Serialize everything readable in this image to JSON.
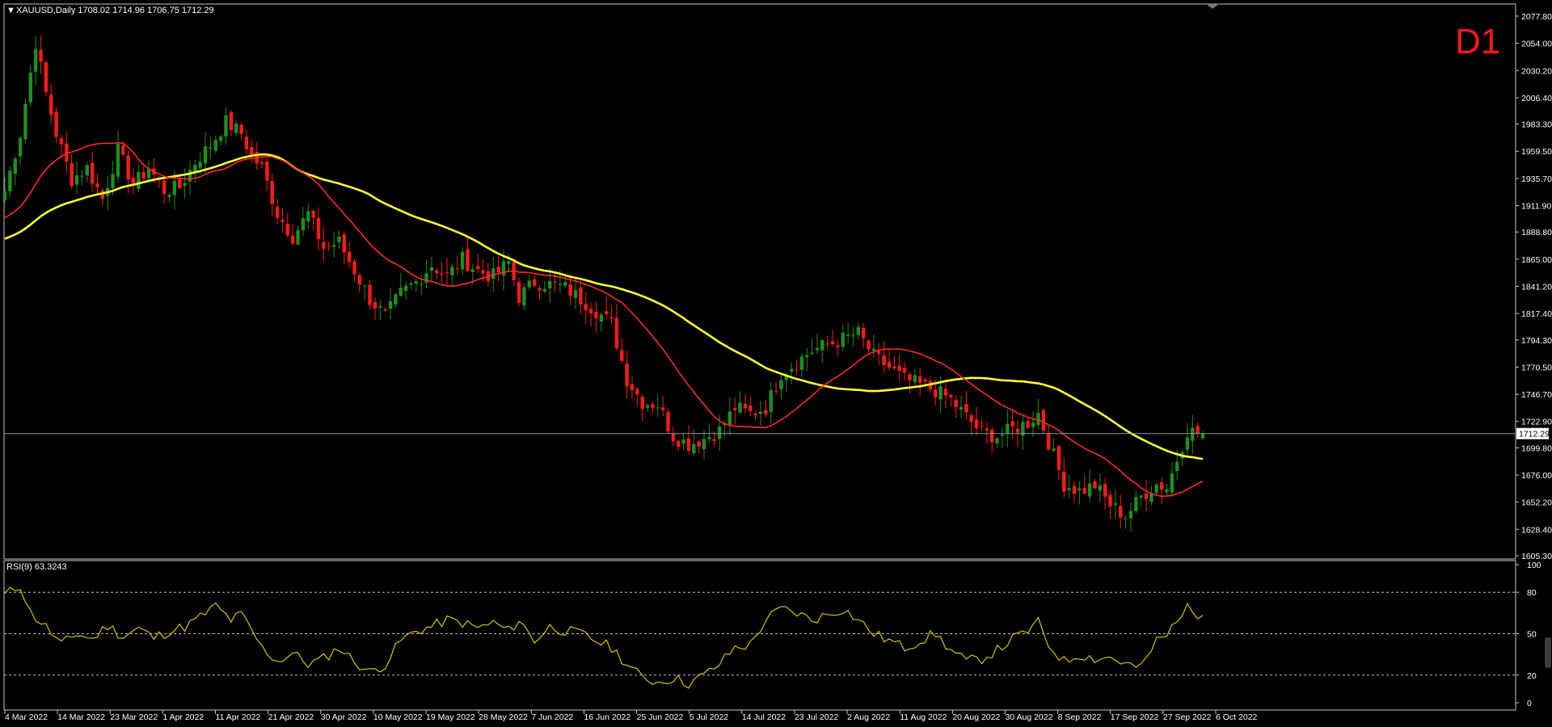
{
  "window": {
    "header": "XAUUSD,Daily  1708.02 1714.96 1706.75 1712.29",
    "timeframe_badge": "D1",
    "current_price_label": "1712.29",
    "colors": {
      "background": "#000000",
      "bull_candle": "#1f8f1f",
      "bear_candle": "#ff1a1a",
      "ma_fast": "#ff2a2a",
      "ma_slow": "#ffff33",
      "rsi_line": "#d4c400",
      "grid_border": "#c8c8c8",
      "text": "#ffffff"
    }
  },
  "chart_data": [
    {
      "type": "candlestick",
      "symbol": "XAUUSD",
      "timeframe": "Daily",
      "ohlc_last": {
        "open": 1708.02,
        "high": 1714.96,
        "low": 1706.75,
        "close": 1712.29
      },
      "ylim": [
        1605.3,
        2077.8
      ],
      "y_ticks": [
        "2077.80",
        "2054.00",
        "2030.20",
        "2006.40",
        "1983.30",
        "1959.50",
        "1935.70",
        "1911.90",
        "1888.80",
        "1865.00",
        "1841.20",
        "1817.40",
        "1794.30",
        "1770.50",
        "1746.70",
        "1722.90",
        "1699.80",
        "1676.00",
        "1652.20",
        "1628.40",
        "1605.30"
      ],
      "x_ticks": [
        "4 Mar 2022",
        "14 Mar 2022",
        "23 Mar 2022",
        "1 Apr 2022",
        "11 Apr 2022",
        "21 Apr 2022",
        "30 Apr 2022",
        "10 May 2022",
        "19 May 2022",
        "28 May 2022",
        "7 Jun 2022",
        "16 Jun 2022",
        "25 Jun 2022",
        "5 Jul 2022",
        "14 Jul 2022",
        "23 Jul 2022",
        "2 Aug 2022",
        "11 Aug 2022",
        "20 Aug 2022",
        "30 Aug 2022",
        "8 Sep 2022",
        "17 Sep 2022",
        "27 Sep 2022",
        "6 Oct 2022"
      ],
      "price_anchors": [
        [
          0,
          1925
        ],
        [
          3,
          1975
        ],
        [
          6,
          2055
        ],
        [
          8,
          2010
        ],
        [
          10,
          1975
        ],
        [
          13,
          1935
        ],
        [
          16,
          1945
        ],
        [
          19,
          1918
        ],
        [
          22,
          1960
        ],
        [
          25,
          1930
        ],
        [
          28,
          1945
        ],
        [
          31,
          1925
        ],
        [
          34,
          1928
        ],
        [
          37,
          1950
        ],
        [
          40,
          1965
        ],
        [
          43,
          1985
        ],
        [
          46,
          1975
        ],
        [
          48,
          1955
        ],
        [
          50,
          1945
        ],
        [
          53,
          1905
        ],
        [
          56,
          1885
        ],
        [
          59,
          1905
        ],
        [
          62,
          1875
        ],
        [
          65,
          1880
        ],
        [
          68,
          1855
        ],
        [
          71,
          1830
        ],
        [
          74,
          1815
        ],
        [
          77,
          1835
        ],
        [
          80,
          1845
        ],
        [
          83,
          1860
        ],
        [
          86,
          1850
        ],
        [
          89,
          1865
        ],
        [
          92,
          1855
        ],
        [
          95,
          1850
        ],
        [
          98,
          1862
        ],
        [
          100,
          1832
        ],
        [
          103,
          1845
        ],
        [
          106,
          1843
        ],
        [
          109,
          1840
        ],
        [
          112,
          1830
        ],
        [
          115,
          1820
        ],
        [
          118,
          1808
        ],
        [
          121,
          1760
        ],
        [
          124,
          1740
        ],
        [
          127,
          1738
        ],
        [
          130,
          1710
        ],
        [
          133,
          1703
        ],
        [
          136,
          1708
        ],
        [
          139,
          1715
        ],
        [
          142,
          1735
        ],
        [
          145,
          1730
        ],
        [
          148,
          1735
        ],
        [
          151,
          1765
        ],
        [
          154,
          1775
        ],
        [
          157,
          1785
        ],
        [
          160,
          1790
        ],
        [
          163,
          1795
        ],
        [
          166,
          1800
        ],
        [
          169,
          1780
        ],
        [
          172,
          1770
        ],
        [
          175,
          1760
        ],
        [
          178,
          1755
        ],
        [
          181,
          1750
        ],
        [
          184,
          1742
        ],
        [
          187,
          1727
        ],
        [
          190,
          1713
        ],
        [
          193,
          1710
        ],
        [
          196,
          1716
        ],
        [
          199,
          1722
        ],
        [
          201,
          1730
        ],
        [
          203,
          1705
        ],
        [
          206,
          1668
        ],
        [
          209,
          1662
        ],
        [
          212,
          1667
        ],
        [
          215,
          1650
        ],
        [
          218,
          1640
        ],
        [
          221,
          1657
        ],
        [
          224,
          1668
        ],
        [
          226,
          1665
        ],
        [
          228,
          1690
        ],
        [
          230,
          1715
        ],
        [
          233,
          1712
        ]
      ],
      "series": [
        {
          "name": "MA fast",
          "source": "moving average of close"
        },
        {
          "name": "MA slow",
          "source": "moving average of close"
        }
      ],
      "horizontal_line": 1712.29,
      "grid": false
    },
    {
      "type": "line",
      "title": "RSI(9) 63.3243",
      "ylim": [
        0,
        100
      ],
      "y_ticks": [
        "100",
        "80",
        "50",
        "20",
        "0"
      ],
      "levels": [
        80,
        50,
        20
      ],
      "rsi_anchors": [
        [
          0,
          78
        ],
        [
          3,
          85
        ],
        [
          5,
          65
        ],
        [
          8,
          55
        ],
        [
          11,
          42
        ],
        [
          14,
          50
        ],
        [
          17,
          46
        ],
        [
          20,
          56
        ],
        [
          23,
          48
        ],
        [
          26,
          54
        ],
        [
          29,
          47
        ],
        [
          32,
          52
        ],
        [
          35,
          55
        ],
        [
          38,
          62
        ],
        [
          41,
          70
        ],
        [
          44,
          60
        ],
        [
          46,
          64
        ],
        [
          48,
          52
        ],
        [
          50,
          40
        ],
        [
          53,
          30
        ],
        [
          56,
          36
        ],
        [
          59,
          28
        ],
        [
          62,
          32
        ],
        [
          65,
          40
        ],
        [
          68,
          30
        ],
        [
          71,
          22
        ],
        [
          74,
          28
        ],
        [
          77,
          45
        ],
        [
          80,
          52
        ],
        [
          83,
          55
        ],
        [
          86,
          60
        ],
        [
          89,
          58
        ],
        [
          92,
          54
        ],
        [
          95,
          58
        ],
        [
          98,
          52
        ],
        [
          100,
          60
        ],
        [
          103,
          45
        ],
        [
          106,
          55
        ],
        [
          109,
          52
        ],
        [
          112,
          50
        ],
        [
          115,
          45
        ],
        [
          118,
          40
        ],
        [
          121,
          28
        ],
        [
          124,
          18
        ],
        [
          127,
          15
        ],
        [
          130,
          18
        ],
        [
          133,
          14
        ],
        [
          136,
          20
        ],
        [
          139,
          28
        ],
        [
          142,
          40
        ],
        [
          145,
          42
        ],
        [
          148,
          60
        ],
        [
          151,
          68
        ],
        [
          154,
          65
        ],
        [
          157,
          60
        ],
        [
          160,
          64
        ],
        [
          163,
          68
        ],
        [
          166,
          60
        ],
        [
          169,
          50
        ],
        [
          172,
          45
        ],
        [
          175,
          40
        ],
        [
          178,
          45
        ],
        [
          181,
          50
        ],
        [
          184,
          38
        ],
        [
          187,
          30
        ],
        [
          190,
          32
        ],
        [
          193,
          38
        ],
        [
          196,
          46
        ],
        [
          199,
          52
        ],
        [
          201,
          58
        ],
        [
          203,
          42
        ],
        [
          206,
          30
        ],
        [
          209,
          35
        ],
        [
          212,
          32
        ],
        [
          215,
          33
        ],
        [
          218,
          28
        ],
        [
          221,
          25
        ],
        [
          224,
          45
        ],
        [
          226,
          48
        ],
        [
          228,
          62
        ],
        [
          230,
          68
        ],
        [
          233,
          63
        ]
      ]
    }
  ]
}
